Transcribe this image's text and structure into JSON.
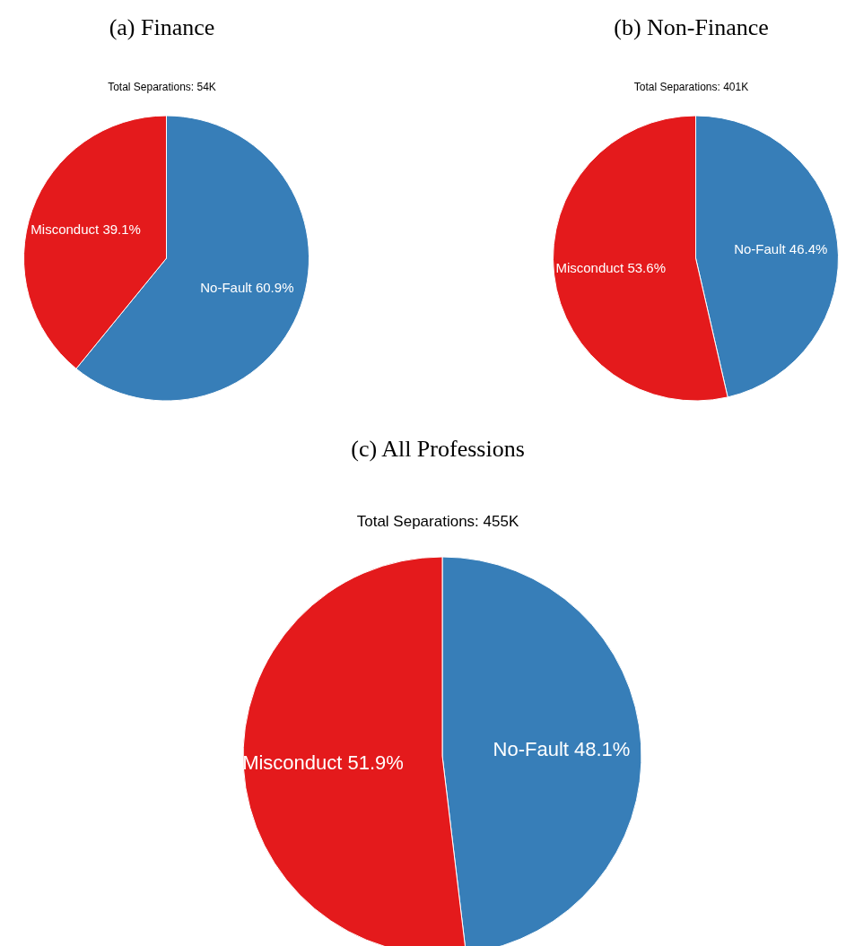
{
  "chart_data": [
    {
      "type": "pie",
      "title": "(a) Finance",
      "subtitle": "Total Separations: 54K",
      "categories": [
        "No-Fault",
        "Misconduct"
      ],
      "values": [
        60.9,
        39.1
      ],
      "colors": [
        "#377eb8",
        "#e41a1c"
      ],
      "value_labels": [
        "60.9%",
        "39.1%"
      ]
    },
    {
      "type": "pie",
      "title": "(b) Non-Finance",
      "subtitle": "Total Separations: 401K",
      "categories": [
        "No-Fault",
        "Misconduct"
      ],
      "values": [
        46.4,
        53.6
      ],
      "colors": [
        "#377eb8",
        "#e41a1c"
      ],
      "value_labels": [
        "46.4%",
        "53.6%"
      ]
    },
    {
      "type": "pie",
      "title": "(c) All Professions",
      "subtitle": "Total Separations: 455K",
      "categories": [
        "No-Fault",
        "Misconduct"
      ],
      "values": [
        48.1,
        51.9
      ],
      "colors": [
        "#377eb8",
        "#e41a1c"
      ],
      "value_labels": [
        "48.1%",
        "51.9%"
      ]
    }
  ]
}
